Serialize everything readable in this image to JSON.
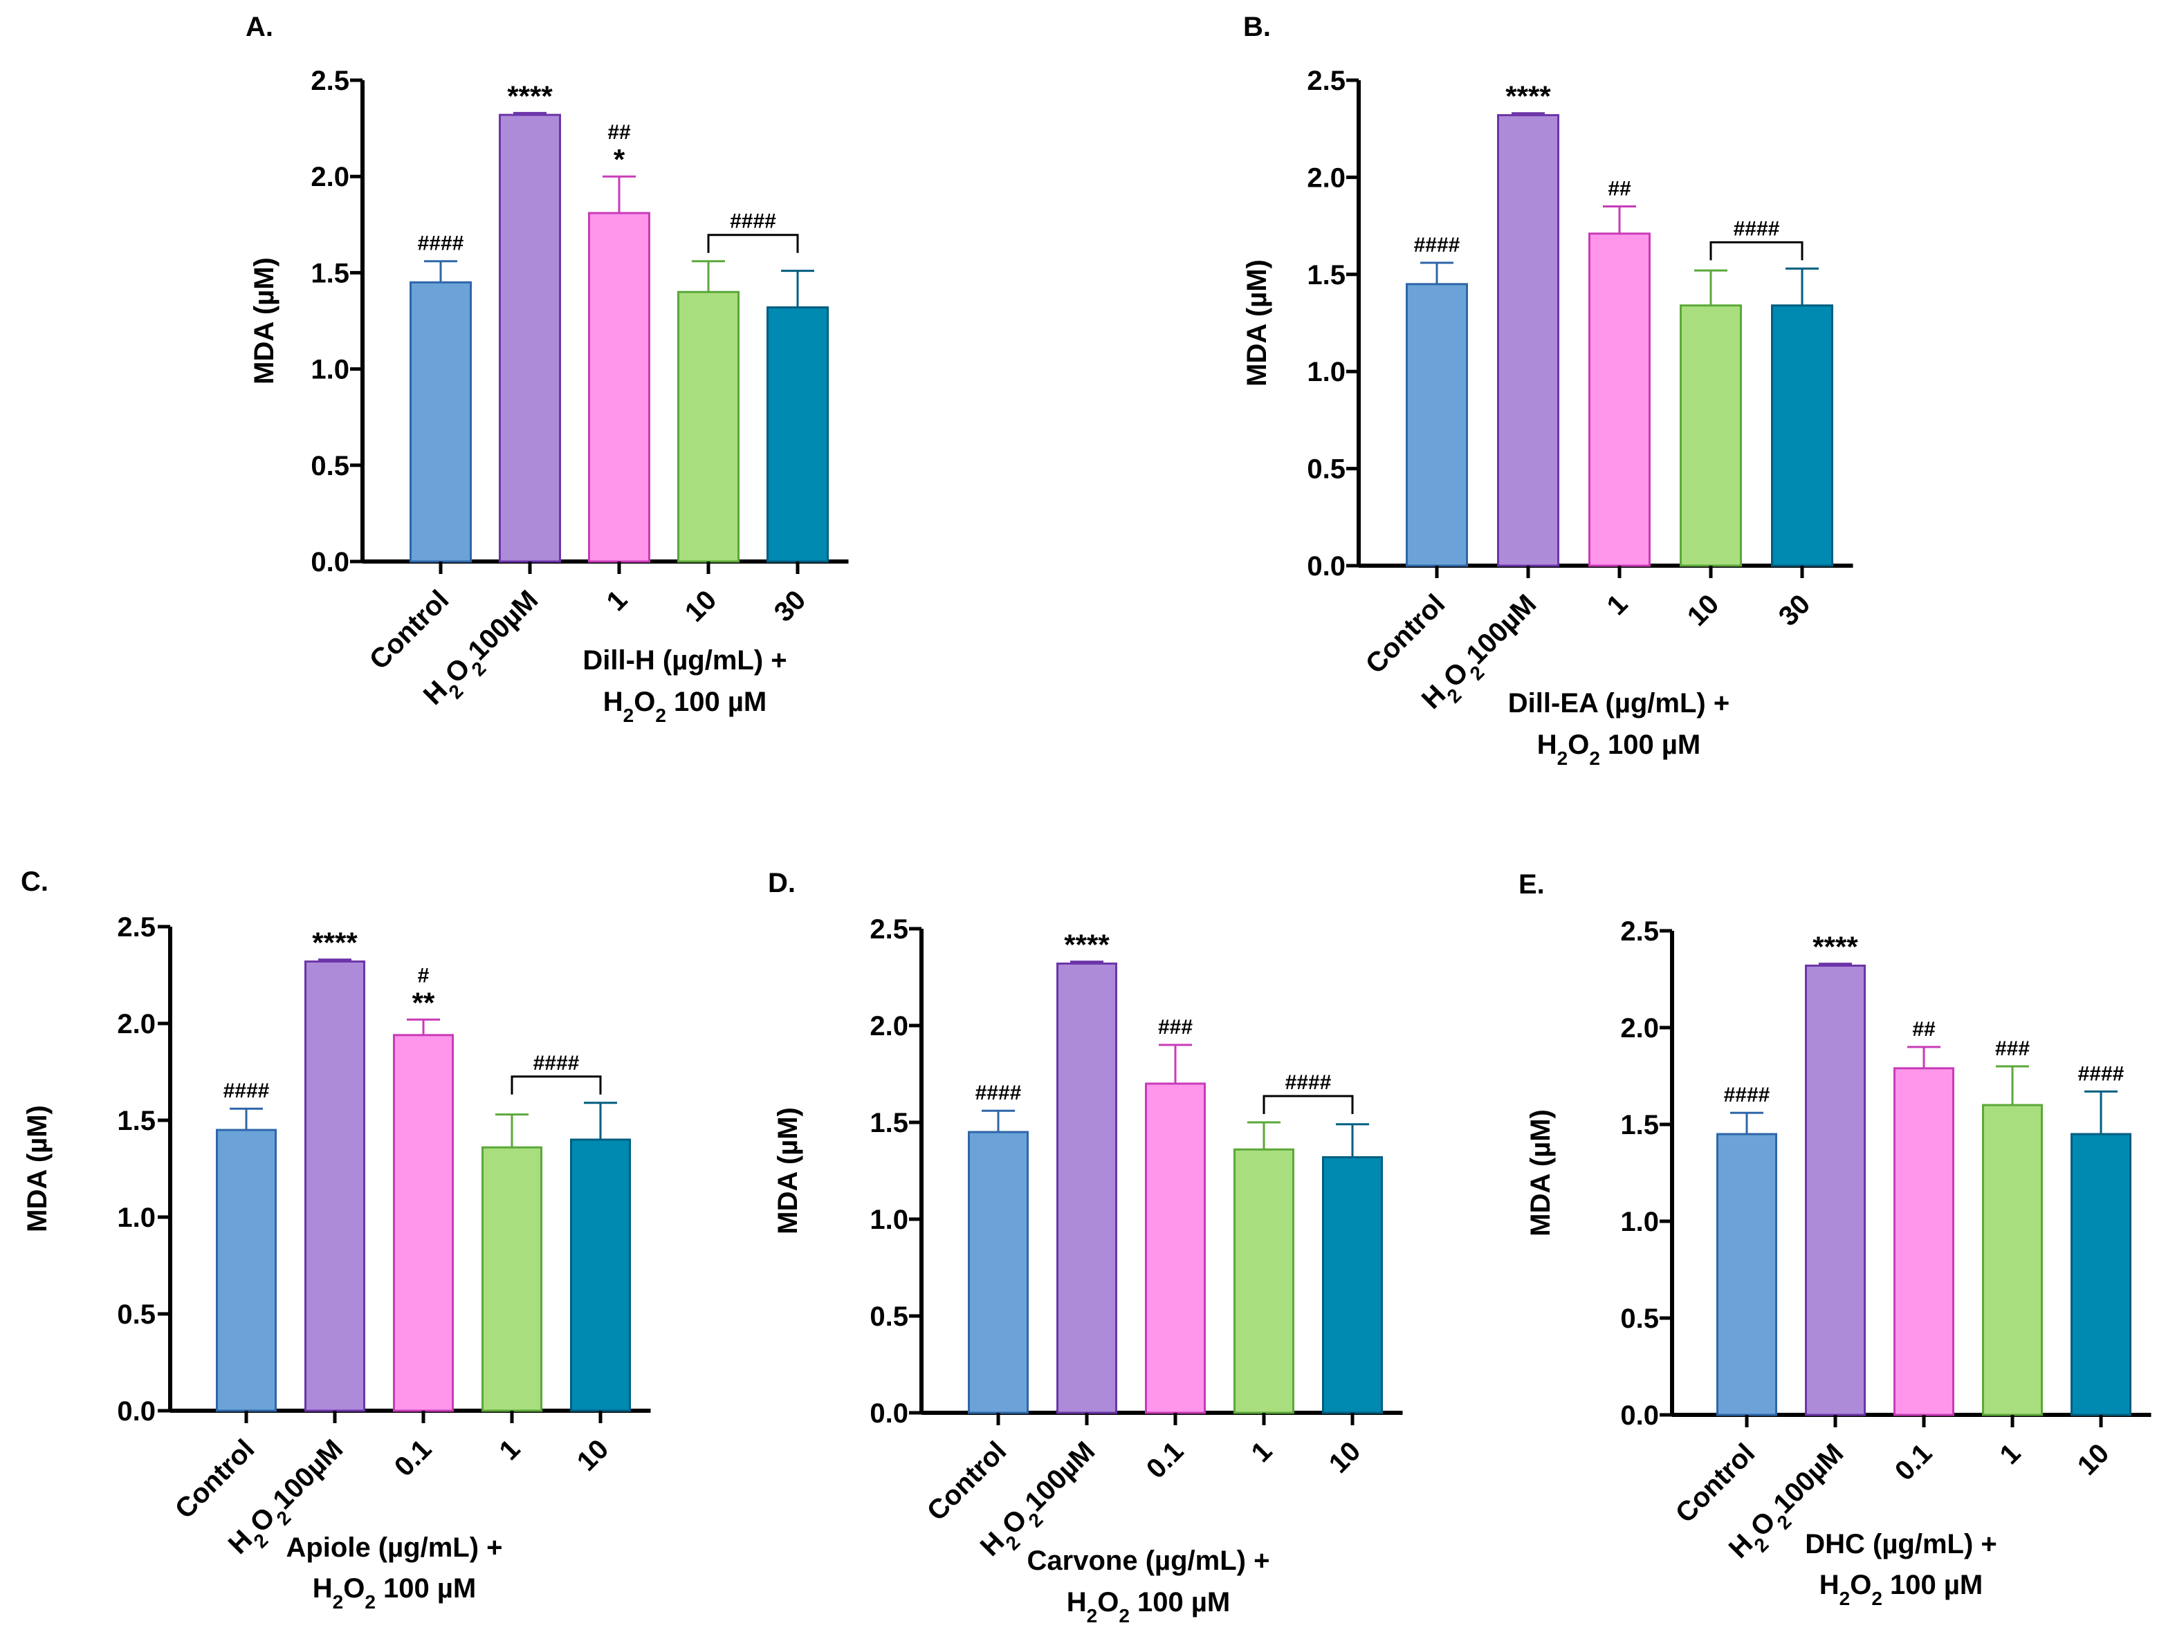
{
  "figure": {
    "series_colors": {
      "control": "#6BA3D8",
      "h2o2": "#AE8BD9",
      "low": "#FF96EC",
      "mid": "#A9DE7E",
      "high": "#0089B1"
    },
    "series_stroke_colors": {
      "control": "#2E66A8",
      "h2o2": "#6B35A8",
      "low": "#C93BB8",
      "mid": "#5BA83A",
      "high": "#005E80"
    }
  },
  "chart_data": [
    {
      "panel": "A.",
      "type": "bar",
      "ylabel": "MDA (µM)",
      "ylim": [
        0,
        2.5
      ],
      "yticks": [
        "0.0",
        "0.5",
        "1.0",
        "1.5",
        "2.0",
        "2.5"
      ],
      "categories": [
        "Control",
        "H2O2100µM",
        "1",
        "10",
        "30"
      ],
      "category_labels": [
        {
          "parts": [
            {
              "t": "Control"
            }
          ]
        },
        {
          "parts": [
            {
              "t": "H"
            },
            {
              "t": "2",
              "sub": true
            },
            {
              "t": "O"
            },
            {
              "t": "2",
              "sub": true
            },
            {
              "t": "100µM"
            }
          ]
        },
        {
          "parts": [
            {
              "t": "1"
            }
          ]
        },
        {
          "parts": [
            {
              "t": "10"
            }
          ]
        },
        {
          "parts": [
            {
              "t": "30"
            }
          ]
        }
      ],
      "values": [
        1.45,
        2.32,
        1.81,
        1.4,
        1.32
      ],
      "errors": [
        0.11,
        0.01,
        0.19,
        0.16,
        0.19
      ],
      "annotations": [
        [
          "####"
        ],
        [
          "****"
        ],
        [
          "##",
          "*"
        ],
        [],
        []
      ],
      "bracket": {
        "from": 3,
        "to": 4,
        "label": "####"
      },
      "group_label": {
        "line1": "Dill-H (µg/mL) +",
        "line2_prefix": "H",
        "line2_sub1": "2",
        "line2_mid": "O",
        "line2_sub2": "2",
        "line2_suffix": " 100 µM"
      }
    },
    {
      "panel": "B.",
      "type": "bar",
      "ylabel": "MDA (µM)",
      "ylim": [
        0,
        2.5
      ],
      "yticks": [
        "0.0",
        "0.5",
        "1.0",
        "1.5",
        "2.0",
        "2.5"
      ],
      "categories": [
        "Control",
        "H2O2100µM",
        "1",
        "10",
        "30"
      ],
      "category_labels": [
        {
          "parts": [
            {
              "t": "Control"
            }
          ]
        },
        {
          "parts": [
            {
              "t": "H"
            },
            {
              "t": "2",
              "sub": true
            },
            {
              "t": "O"
            },
            {
              "t": "2",
              "sub": true
            },
            {
              "t": "100µM"
            }
          ]
        },
        {
          "parts": [
            {
              "t": "1"
            }
          ]
        },
        {
          "parts": [
            {
              "t": "10"
            }
          ]
        },
        {
          "parts": [
            {
              "t": "30"
            }
          ]
        }
      ],
      "values": [
        1.45,
        2.32,
        1.71,
        1.34,
        1.34
      ],
      "errors": [
        0.11,
        0.01,
        0.14,
        0.18,
        0.19
      ],
      "annotations": [
        [
          "####"
        ],
        [
          "****"
        ],
        [
          "##"
        ],
        [],
        []
      ],
      "bracket": {
        "from": 3,
        "to": 4,
        "label": "####"
      },
      "group_label": {
        "line1": "Dill-EA (µg/mL) +",
        "line2_prefix": "H",
        "line2_sub1": "2",
        "line2_mid": "O",
        "line2_sub2": "2",
        "line2_suffix": " 100 µM"
      }
    },
    {
      "panel": "C.",
      "type": "bar",
      "ylabel": "MDA (µM)",
      "ylim": [
        0,
        2.5
      ],
      "yticks": [
        "0.0",
        "0.5",
        "1.0",
        "1.5",
        "2.0",
        "2.5"
      ],
      "categories": [
        "Control",
        "H2O2100µM",
        "0.1",
        "1",
        "10"
      ],
      "category_labels": [
        {
          "parts": [
            {
              "t": "Control"
            }
          ]
        },
        {
          "parts": [
            {
              "t": "H"
            },
            {
              "t": "2",
              "sub": true
            },
            {
              "t": "O"
            },
            {
              "t": "2",
              "sub": true
            },
            {
              "t": "100µM"
            }
          ]
        },
        {
          "parts": [
            {
              "t": "0.1"
            }
          ]
        },
        {
          "parts": [
            {
              "t": "1"
            }
          ]
        },
        {
          "parts": [
            {
              "t": "10"
            }
          ]
        }
      ],
      "values": [
        1.45,
        2.32,
        1.94,
        1.36,
        1.4
      ],
      "errors": [
        0.11,
        0.01,
        0.08,
        0.17,
        0.19
      ],
      "annotations": [
        [
          "####"
        ],
        [
          "****"
        ],
        [
          "#",
          "**"
        ],
        [],
        []
      ],
      "bracket": {
        "from": 3,
        "to": 4,
        "label": "####"
      },
      "group_label": {
        "line1": "Apiole (µg/mL) +",
        "line2_prefix": "H",
        "line2_sub1": "2",
        "line2_mid": "O",
        "line2_sub2": "2",
        "line2_suffix": " 100 µM"
      }
    },
    {
      "panel": "D.",
      "type": "bar",
      "ylabel": "MDA (µM)",
      "ylim": [
        0,
        2.5
      ],
      "yticks": [
        "0.0",
        "0.5",
        "1.0",
        "1.5",
        "2.0",
        "2.5"
      ],
      "categories": [
        "Control",
        "H2O2100µM",
        "0.1",
        "1",
        "10"
      ],
      "category_labels": [
        {
          "parts": [
            {
              "t": "Control"
            }
          ]
        },
        {
          "parts": [
            {
              "t": "H"
            },
            {
              "t": "2",
              "sub": true
            },
            {
              "t": "O"
            },
            {
              "t": "2",
              "sub": true
            },
            {
              "t": "100µM"
            }
          ]
        },
        {
          "parts": [
            {
              "t": "0.1"
            }
          ]
        },
        {
          "parts": [
            {
              "t": "1"
            }
          ]
        },
        {
          "parts": [
            {
              "t": "10"
            }
          ]
        }
      ],
      "values": [
        1.45,
        2.32,
        1.7,
        1.36,
        1.32
      ],
      "errors": [
        0.11,
        0.01,
        0.2,
        0.14,
        0.17
      ],
      "annotations": [
        [
          "####"
        ],
        [
          "****"
        ],
        [
          "###"
        ],
        [],
        []
      ],
      "bracket": {
        "from": 3,
        "to": 4,
        "label": "####"
      },
      "group_label": {
        "line1": "Carvone (µg/mL) +",
        "line2_prefix": "H",
        "line2_sub1": "2",
        "line2_mid": "O",
        "line2_sub2": "2",
        "line2_suffix": " 100 µM"
      }
    },
    {
      "panel": "E.",
      "type": "bar",
      "ylabel": "MDA (µM)",
      "ylim": [
        0,
        2.5
      ],
      "yticks": [
        "0.0",
        "0.5",
        "1.0",
        "1.5",
        "2.0",
        "2.5"
      ],
      "categories": [
        "Control",
        "H2O2100µM",
        "0.1",
        "1",
        "10"
      ],
      "category_labels": [
        {
          "parts": [
            {
              "t": "Control"
            }
          ]
        },
        {
          "parts": [
            {
              "t": "H"
            },
            {
              "t": "2",
              "sub": true
            },
            {
              "t": "O"
            },
            {
              "t": "2",
              "sub": true
            },
            {
              "t": "100µM"
            }
          ]
        },
        {
          "parts": [
            {
              "t": "0.1"
            }
          ]
        },
        {
          "parts": [
            {
              "t": "1"
            }
          ]
        },
        {
          "parts": [
            {
              "t": "10"
            }
          ]
        }
      ],
      "values": [
        1.45,
        2.32,
        1.79,
        1.6,
        1.45
      ],
      "errors": [
        0.11,
        0.01,
        0.11,
        0.2,
        0.22
      ],
      "annotations": [
        [
          "####"
        ],
        [
          "****"
        ],
        [
          "##"
        ],
        [
          "###"
        ],
        [
          "####"
        ]
      ],
      "bracket": null,
      "group_label": {
        "line1": "DHC (µg/mL) +",
        "line2_prefix": "H",
        "line2_sub1": "2",
        "line2_mid": "O",
        "line2_sub2": "2",
        "line2_suffix": " 100 µM"
      }
    }
  ]
}
